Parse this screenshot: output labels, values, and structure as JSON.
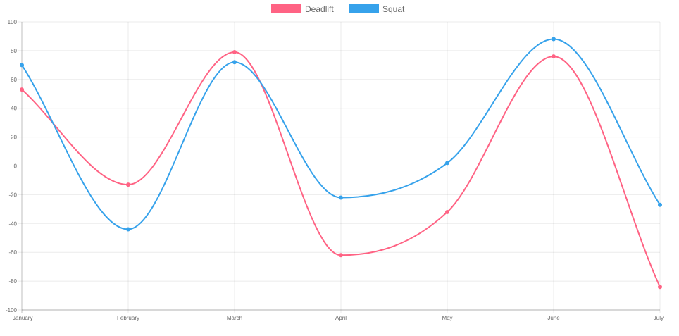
{
  "chart_data": {
    "type": "line",
    "title": "",
    "xlabel": "",
    "ylabel": "",
    "categories": [
      "January",
      "February",
      "March",
      "April",
      "May",
      "June",
      "July"
    ],
    "ylim": [
      -100,
      100
    ],
    "yticks": [
      100,
      80,
      60,
      40,
      20,
      0,
      -20,
      -40,
      -60,
      -80,
      -100
    ],
    "grid": true,
    "legend_position": "top",
    "series": [
      {
        "name": "Deadlift",
        "color": "#ff6384",
        "values": [
          53,
          -13,
          79,
          -62,
          -32,
          76,
          -84
        ]
      },
      {
        "name": "Squat",
        "color": "#36a2eb",
        "values": [
          70,
          -44,
          72,
          -22,
          2,
          88,
          -27
        ]
      }
    ]
  }
}
